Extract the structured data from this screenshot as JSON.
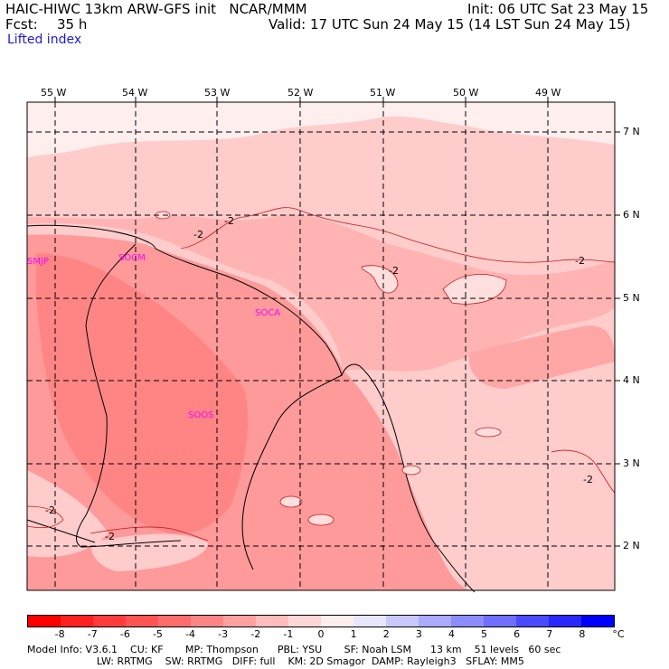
{
  "header": {
    "title": "HAIC-HIWC 13km ARW-GFS init   NCAR/MMM",
    "init": "Init: 06 UTC Sat 23 May 15",
    "fcst_label": "Fcst:",
    "fcst_value": "35 h",
    "valid": "Valid: 17 UTC Sun 24 May 15 (14 LST Sun 24 May 15)",
    "field": "Lifted index"
  },
  "map": {
    "longitude_labels": [
      "55 W",
      "54 W",
      "53 W",
      "52 W",
      "51 W",
      "50 W",
      "49 W"
    ],
    "latitude_labels": [
      "7 N",
      "6 N",
      "5 N",
      "4 N",
      "3 N",
      "2 N"
    ],
    "stations": [
      "SMJP",
      "SOCM",
      "SOCA",
      "SOOS"
    ],
    "contour_labels": [
      "-2",
      "-2",
      "-2",
      "-2",
      "-2",
      "-2",
      "-2"
    ],
    "station_color": "#ff00ff"
  },
  "colorbar": {
    "ticks": [
      "-8",
      "-7",
      "-6",
      "-5",
      "-4",
      "-3",
      "-2",
      "-1",
      "0",
      "1",
      "2",
      "3",
      "4",
      "5",
      "6",
      "7",
      "8"
    ],
    "unit": "°C",
    "colors": [
      "#ff0000",
      "#ff2020",
      "#ff3b3b",
      "#ff5454",
      "#ff6c6c",
      "#ff8585",
      "#ffa0a0",
      "#ffbcbc",
      "#ffd6d6",
      "#ffeeee",
      "#e6e6ff",
      "#c8c8ff",
      "#aaaaff",
      "#8c8cff",
      "#6e6eff",
      "#4a4aff",
      "#2828ff",
      "#0000ff"
    ]
  },
  "model_info": {
    "line1": "Model Info: V3.6.1    CU: KF       MP: Thompson      PBL: YSU       SF: Noah LSM      13 km    51 levels   60 sec",
    "line2": "                      LW: RRTMG    SW: RRTMG   DIFF: full    KM: 2D Smagor  DAMP: Rayleigh3   SFLAY: MM5"
  }
}
